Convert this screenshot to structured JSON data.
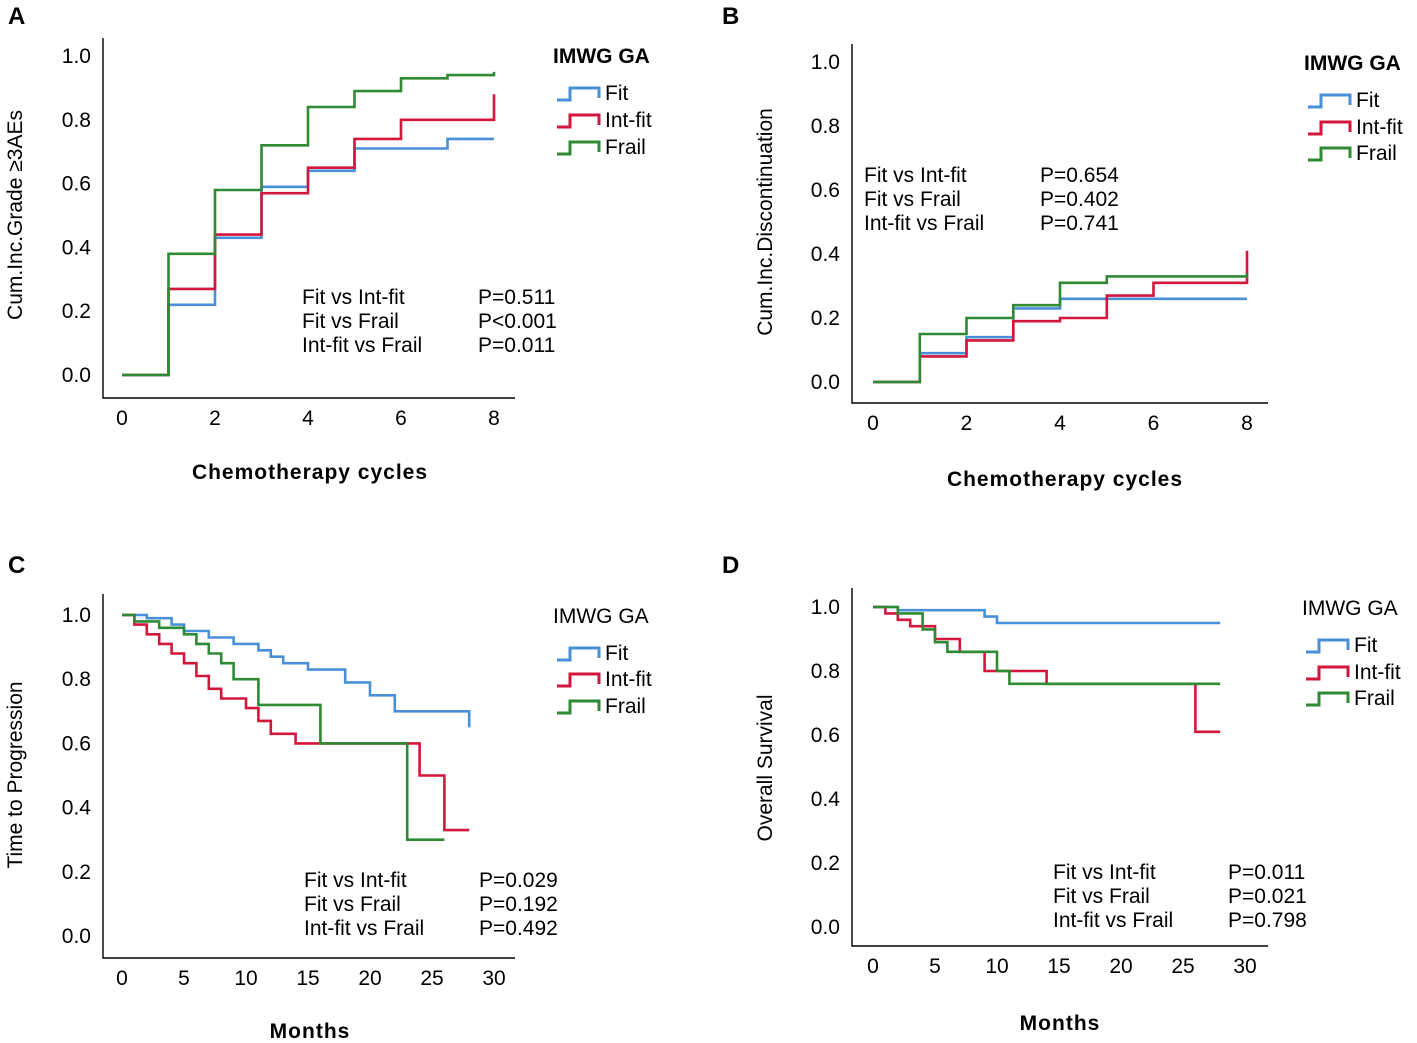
{
  "colors": {
    "Fit": "#4a90d9",
    "Int-fit": "#d4163c",
    "Frail": "#2e8b34",
    "axis": "#000000"
  },
  "chart_data": [
    {
      "panel": "A",
      "type": "line",
      "step": true,
      "xlabel": "Chemotherapy cycles",
      "ylabel": "Cum.Inc.Grade ≥3AEs",
      "xlim": [
        0,
        8
      ],
      "ylim": [
        0,
        1
      ],
      "xticks": [
        "0",
        "2",
        "4",
        "6",
        "8"
      ],
      "yticks": [
        "0.0",
        "0.2",
        "0.4",
        "0.6",
        "0.8",
        "1.0"
      ],
      "legend_title": "IMWG GA",
      "legend_title_bold": true,
      "series": [
        {
          "name": "Fit",
          "x": [
            0,
            1,
            2,
            3,
            4,
            5,
            7,
            8
          ],
          "y": [
            0.0,
            0.22,
            0.43,
            0.59,
            0.64,
            0.71,
            0.74,
            0.74
          ],
          "end_rise": null
        },
        {
          "name": "Int-fit",
          "x": [
            0,
            1,
            2,
            3,
            4,
            5,
            6,
            8
          ],
          "y": [
            0.0,
            0.27,
            0.44,
            0.57,
            0.65,
            0.74,
            0.8,
            0.8
          ],
          "end_rise": 0.88
        },
        {
          "name": "Frail",
          "x": [
            0,
            1,
            2,
            3,
            4,
            5,
            6,
            7,
            8
          ],
          "y": [
            0.0,
            0.38,
            0.58,
            0.72,
            0.84,
            0.89,
            0.93,
            0.94,
            0.95
          ],
          "end_rise": null
        }
      ],
      "annotations": [
        {
          "label": "Fit vs Int-fit",
          "value": "P=0.511"
        },
        {
          "label": "Fit vs Frail",
          "value": "P<0.001"
        },
        {
          "label": "Int-fit vs Frail",
          "value": "P=0.011"
        }
      ]
    },
    {
      "panel": "B",
      "type": "line",
      "step": true,
      "xlabel": "Chemotherapy cycles",
      "ylabel": "Cum.Inc.Discontinuation",
      "xlim": [
        0,
        8
      ],
      "ylim": [
        0,
        1
      ],
      "xticks": [
        "0",
        "2",
        "4",
        "6",
        "8"
      ],
      "yticks": [
        "0.0",
        "0.2",
        "0.4",
        "0.6",
        "0.8",
        "1.0"
      ],
      "legend_title": "IMWG GA",
      "legend_title_bold": true,
      "series": [
        {
          "name": "Fit",
          "x": [
            0,
            1,
            2,
            3,
            4,
            8
          ],
          "y": [
            0.0,
            0.09,
            0.14,
            0.23,
            0.26,
            0.26
          ],
          "end_rise": null
        },
        {
          "name": "Int-fit",
          "x": [
            0,
            1,
            2,
            3,
            4,
            5,
            6,
            8
          ],
          "y": [
            0.0,
            0.08,
            0.13,
            0.19,
            0.2,
            0.27,
            0.31,
            0.31
          ],
          "end_rise": 0.41
        },
        {
          "name": "Frail",
          "x": [
            0,
            1,
            2,
            3,
            4,
            5,
            8
          ],
          "y": [
            0.0,
            0.15,
            0.2,
            0.24,
            0.31,
            0.33,
            0.34
          ],
          "end_rise": null
        }
      ],
      "annotations": [
        {
          "label": "Fit vs Int-fit",
          "value": "P=0.654"
        },
        {
          "label": "Fit vs Frail",
          "value": "P=0.402"
        },
        {
          "label": "Int-fit vs Frail",
          "value": "P=0.741"
        }
      ]
    },
    {
      "panel": "C",
      "type": "line",
      "step": true,
      "xlabel": "Months",
      "ylabel": "Time to Progression",
      "xlim": [
        0,
        30
      ],
      "ylim": [
        0,
        1
      ],
      "xticks": [
        "0",
        "5",
        "10",
        "15",
        "20",
        "25",
        "30"
      ],
      "yticks": [
        "0.0",
        "0.2",
        "0.4",
        "0.6",
        "0.8",
        "1.0"
      ],
      "legend_title": "IMWG GA",
      "legend_title_bold": false,
      "series": [
        {
          "name": "Fit",
          "x": [
            0,
            2,
            4,
            5,
            7,
            9,
            11,
            12,
            13,
            15,
            18,
            20,
            22,
            28
          ],
          "y": [
            1.0,
            0.99,
            0.97,
            0.95,
            0.93,
            0.91,
            0.89,
            0.87,
            0.85,
            0.83,
            0.79,
            0.75,
            0.7,
            0.65
          ],
          "end_rise": null
        },
        {
          "name": "Int-fit",
          "x": [
            0,
            1,
            2,
            3,
            4,
            5,
            6,
            7,
            8,
            10,
            11,
            12,
            14,
            16,
            18,
            24,
            26,
            28
          ],
          "y": [
            1.0,
            0.97,
            0.94,
            0.91,
            0.88,
            0.85,
            0.81,
            0.77,
            0.74,
            0.71,
            0.67,
            0.63,
            0.6,
            0.6,
            0.6,
            0.5,
            0.33,
            0.33
          ],
          "end_rise": null
        },
        {
          "name": "Frail",
          "x": [
            0,
            1,
            3,
            5,
            6,
            7,
            8,
            9,
            11,
            13,
            16,
            19,
            23,
            26
          ],
          "y": [
            1.0,
            0.98,
            0.96,
            0.94,
            0.91,
            0.88,
            0.85,
            0.8,
            0.72,
            0.72,
            0.6,
            0.6,
            0.3,
            0.3
          ],
          "end_rise": null
        }
      ],
      "annotations": [
        {
          "label": "Fit vs Int-fit",
          "value": "P=0.029"
        },
        {
          "label": "Fit vs Frail",
          "value": "P=0.192"
        },
        {
          "label": "Int-fit vs Frail",
          "value": "P=0.492"
        }
      ]
    },
    {
      "panel": "D",
      "type": "line",
      "step": true,
      "xlabel": "Months",
      "ylabel": "Overall Survival",
      "xlim": [
        0,
        30
      ],
      "ylim": [
        0,
        1
      ],
      "xticks": [
        "0",
        "5",
        "10",
        "15",
        "20",
        "25",
        "30"
      ],
      "yticks": [
        "0.0",
        "0.2",
        "0.4",
        "0.6",
        "0.8",
        "1.0"
      ],
      "legend_title": "IMWG GA",
      "legend_title_bold": false,
      "series": [
        {
          "name": "Fit",
          "x": [
            0,
            2,
            9,
            10,
            28
          ],
          "y": [
            1.0,
            0.99,
            0.97,
            0.95,
            0.95
          ],
          "end_rise": null
        },
        {
          "name": "Int-fit",
          "x": [
            0,
            1,
            2,
            3,
            5,
            7,
            9,
            14,
            26,
            28
          ],
          "y": [
            1.0,
            0.98,
            0.96,
            0.94,
            0.9,
            0.86,
            0.8,
            0.76,
            0.61,
            0.61
          ],
          "end_rise": null
        },
        {
          "name": "Frail",
          "x": [
            0,
            2,
            4,
            5,
            6,
            10,
            11,
            28
          ],
          "y": [
            1.0,
            0.98,
            0.93,
            0.89,
            0.86,
            0.8,
            0.76,
            0.76
          ],
          "end_rise": null
        }
      ],
      "annotations": [
        {
          "label": "Fit vs Int-fit",
          "value": "P=0.011"
        },
        {
          "label": "Fit vs Frail",
          "value": "P=0.021"
        },
        {
          "label": "Int-fit vs Frail",
          "value": "P=0.798"
        }
      ]
    }
  ]
}
